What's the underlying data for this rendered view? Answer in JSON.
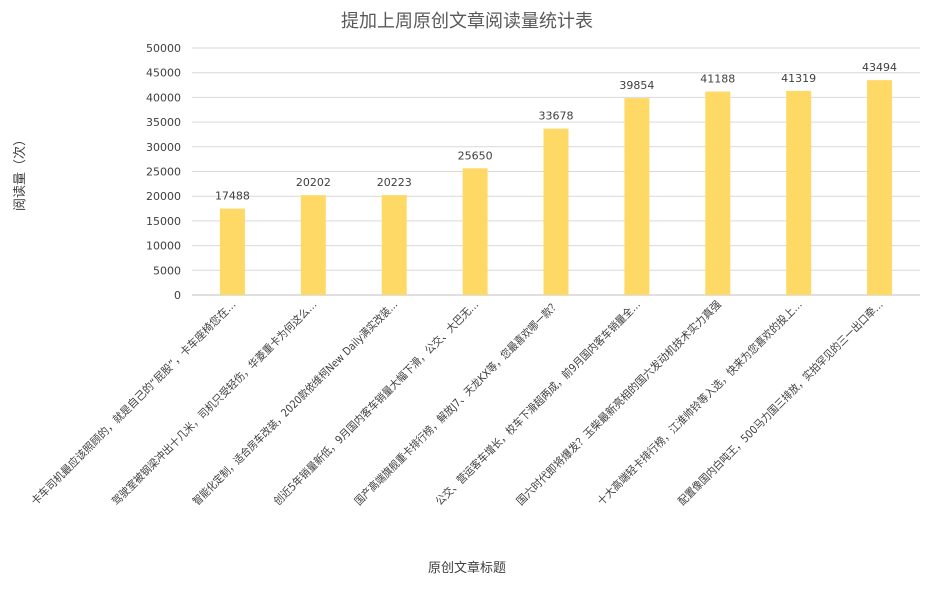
{
  "chart_data": {
    "type": "bar",
    "title": "提加上周原创文章阅读量统计表",
    "xlabel": "原创文章标题",
    "ylabel": "阅读量（次）",
    "ylim": [
      0,
      50000
    ],
    "yticks": [
      0,
      5000,
      10000,
      15000,
      20000,
      25000,
      30000,
      35000,
      40000,
      45000,
      50000
    ],
    "grid": true,
    "legend": "none",
    "bar_color": "#FFD966",
    "categories": [
      "卡车司机最应该照顾的，就是自己的“屁股”，卡车座椅您在…",
      "驾驶室被钢梁冲出十几米，司机只受轻伤，华菱重卡为何这么…",
      "智能化定制，适合房车改装，2020款依维柯New Daily满实改装…",
      "创近5年销量新低，9月国内客车销量大幅下滑，公交、大巴无…",
      "国产高端旗舰重卡排行榜，解放J7、天龙KX等，您最喜欢哪一款？",
      "公交、营运客车增长，校车下滑超两成，前9月国内客车销量全…",
      "国六时代即将爆发？玉柴最新亮相的国六发动机技术实力真强",
      "十大高端轻卡排行榜，江淮帅铃等入选，快来为您喜欢的投上…",
      "配置像国内白吨王，500马力国三排放，实拍罕见的三一出口牵…"
    ],
    "values": [
      17488,
      20202,
      20223,
      25650,
      33678,
      39854,
      41188,
      41319,
      43494
    ]
  }
}
